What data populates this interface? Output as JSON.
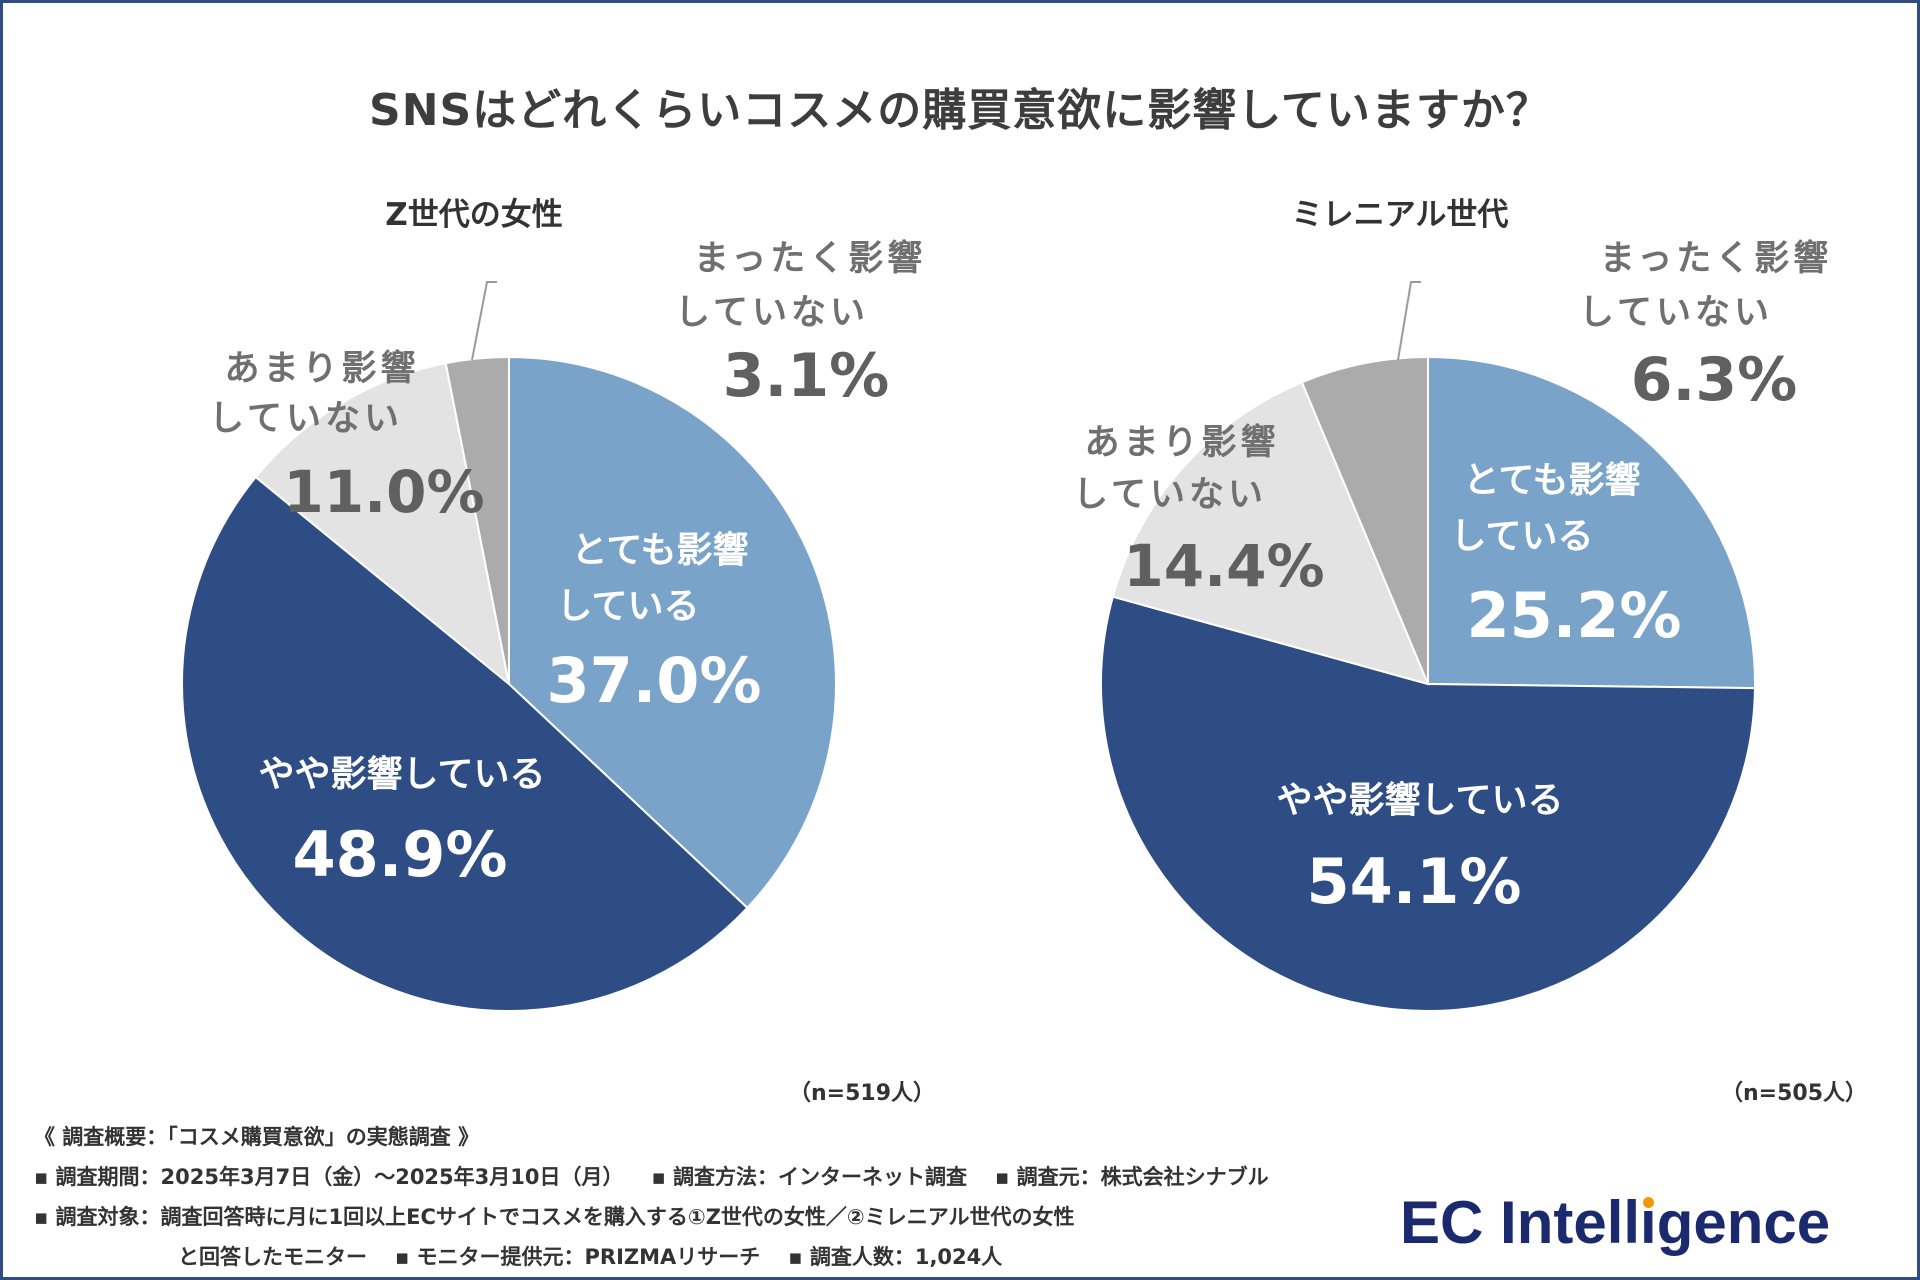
{
  "title": "SNSはどれくらいコスメの購買意欲に影響していますか？",
  "chart_data": [
    {
      "type": "pie",
      "title": "Z世代の女性",
      "sample": "（n=519人）",
      "slices": [
        {
          "line1": "とても影響",
          "line2": "している",
          "value_label": "37.0%",
          "value": 37.0,
          "color": "#7aa3c9"
        },
        {
          "line1": "やや影響している",
          "line2": "",
          "value_label": "48.9%",
          "value": 48.9,
          "color": "#2e4d84"
        },
        {
          "line1": "あまり影響",
          "line2": "していない",
          "value_label": "11.0%",
          "value": 11.0,
          "color": "#e3e3e3"
        },
        {
          "line1": "まったく影響",
          "line2": "していない",
          "value_label": "3.1%",
          "value": 3.1,
          "color": "#ababab"
        }
      ]
    },
    {
      "type": "pie",
      "title": "ミレニアル世代",
      "sample": "（n=505人）",
      "slices": [
        {
          "line1": "とても影響",
          "line2": "している",
          "value_label": "25.2%",
          "value": 25.2,
          "color": "#7aa3c9"
        },
        {
          "line1": "やや影響している",
          "line2": "",
          "value_label": "54.1%",
          "value": 54.1,
          "color": "#2e4d84"
        },
        {
          "line1": "あまり影響",
          "line2": "していない",
          "value_label": "14.4%",
          "value": 14.4,
          "color": "#e3e3e3"
        },
        {
          "line1": "まったく影響",
          "line2": "していない",
          "value_label": "6.3%",
          "value": 6.3,
          "color": "#ababab"
        }
      ]
    }
  ],
  "survey": {
    "heading": "《 調査概要：「コスメ購買意欲」の実態調査 》",
    "period": "▪ 調査期間：2025年3月7日（金）～2025年3月10日（月）",
    "method": "▪ 調査方法：インターネット調査",
    "source": "▪ 調査元：株式会社シナブル",
    "target": "▪ 調査対象：調査回答時に月に1回以上ECサイトでコスメを購入する①Z世代の女性／②ミレニアル世代の女性",
    "target_cont": "と回答したモニター",
    "provider": "▪ モニター提供元：PRIZMAリサーチ",
    "count": "▪ 調査人数：1,024人"
  },
  "logo": {
    "part1": "EC Intell",
    "part2": "gence",
    "dotted_letter": "i",
    "dot_color": "#f39800"
  }
}
